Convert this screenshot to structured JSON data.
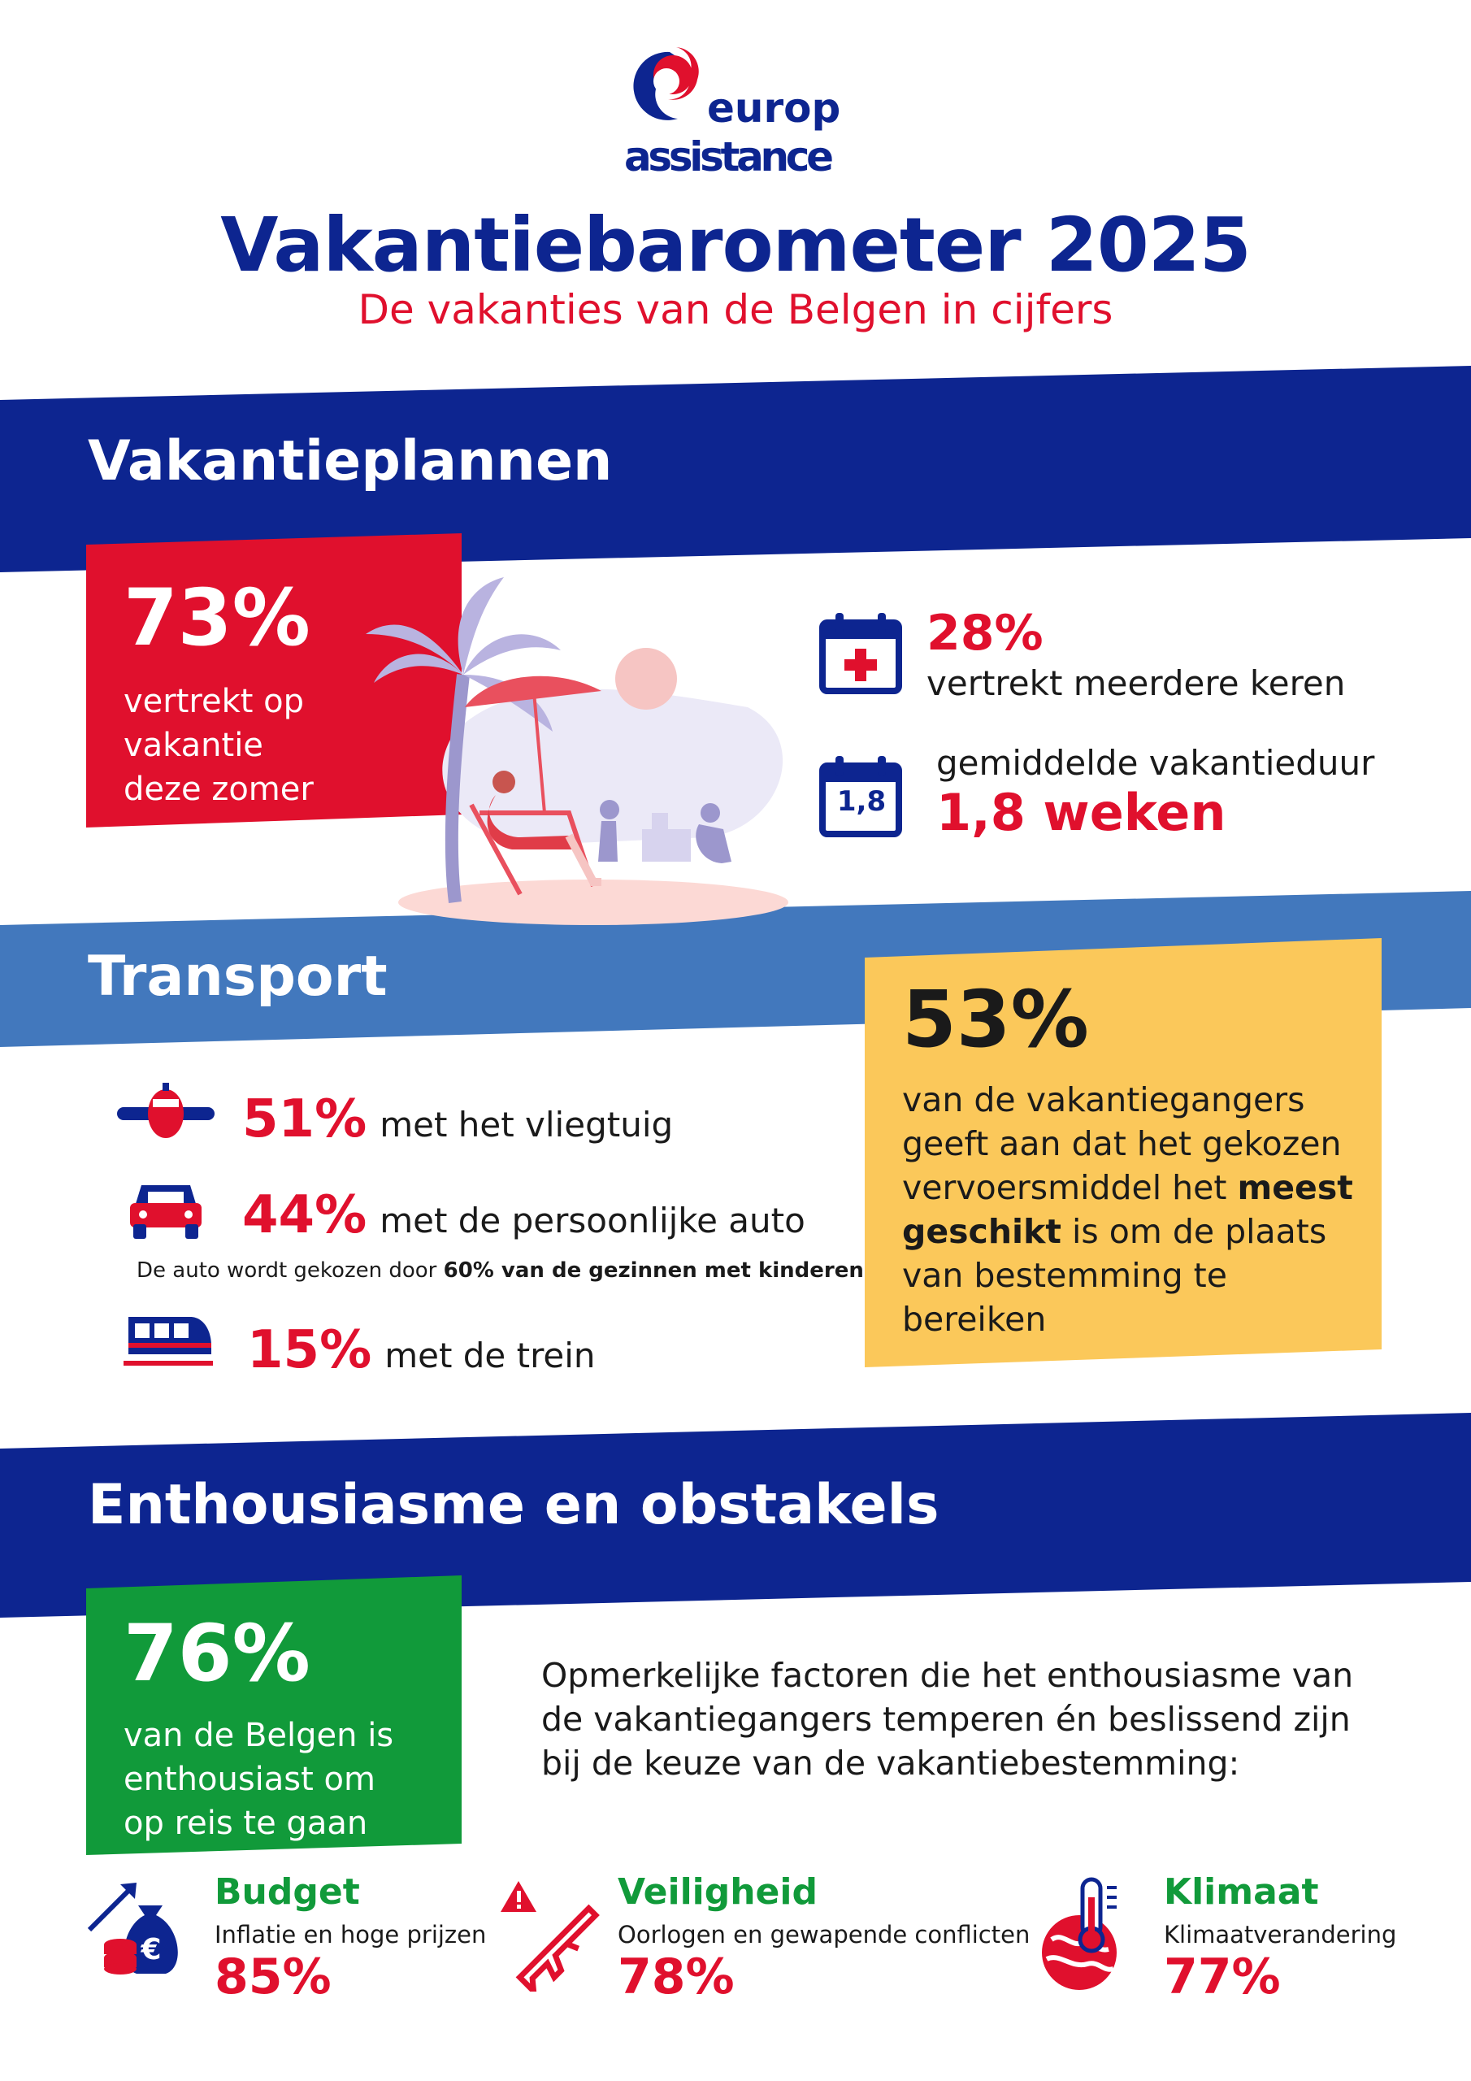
{
  "brand": {
    "line1": "europ",
    "line2": "assistance",
    "navy": "#0d2590",
    "red": "#e0102d"
  },
  "header": {
    "title": "Vakantiebarometer 2025",
    "subtitle": "De vakanties van de Belgen in cijfers"
  },
  "sections": {
    "plans": {
      "title": "Vakantieplannen",
      "main_stat": {
        "value": "73%",
        "text": [
          "vertrekt op",
          "vakantie",
          "deze zomer"
        ]
      },
      "multiple_trips": {
        "value": "28%",
        "text": "vertrekt meerdere keren",
        "icon": "calendar-plus-icon"
      },
      "duration": {
        "label": "gemiddelde vakantieduur",
        "value": "1,8 weken",
        "icon_text": "1,8",
        "icon": "calendar-duration-icon"
      }
    },
    "transport": {
      "title": "Transport",
      "items": [
        {
          "value": "51%",
          "label": "met het vliegtuig",
          "icon": "airplane-icon"
        },
        {
          "value": "44%",
          "label": "met de persoonlijke auto",
          "icon": "car-icon"
        },
        {
          "value": "15%",
          "label": "met de trein",
          "icon": "train-icon"
        }
      ],
      "car_note": {
        "before": "De auto wordt gekozen door ",
        "bold": "60% van de gezinnen met kinderen"
      },
      "callout": {
        "value": "53%",
        "line1": "van de vakantiegangers",
        "line2": "geeft aan dat het gekozen",
        "line3_before": "vervoersmiddel het ",
        "line3_bold": "meest",
        "line4_bold": "geschikt",
        "line4_after": " is om de plaats",
        "line5": "van bestemming te",
        "line6": "bereiken"
      }
    },
    "enthusiasm": {
      "title": "Enthousiasme en obstakels",
      "main_stat": {
        "value": "76%",
        "text": [
          "van de Belgen is",
          "enthousiast om",
          "op reis te gaan"
        ]
      },
      "intro": [
        "Opmerkelijke factoren die het enthousiasme van",
        "de vakantiegangers temperen én beslissend zijn",
        "bij de keuze van de vakantiebestemming:"
      ],
      "factors": [
        {
          "title": "Budget",
          "desc": "Inflatie en hoge prijzen",
          "value": "85%",
          "icon": "money-bag-icon"
        },
        {
          "title": "Veiligheid",
          "desc": "Oorlogen en gewapende conflicten",
          "value": "78%",
          "icon": "warning-rifle-icon"
        },
        {
          "title": "Klimaat",
          "desc": "Klimaatverandering",
          "value": "77%",
          "icon": "thermometer-globe-icon"
        }
      ]
    }
  },
  "colors": {
    "navy_band": "#0d2590",
    "light_band": "#4278bd",
    "red_box": "#e0102d",
    "yellow_box": "#fbc85a",
    "green_box": "#119a3a",
    "green_title": "#119a3a"
  }
}
